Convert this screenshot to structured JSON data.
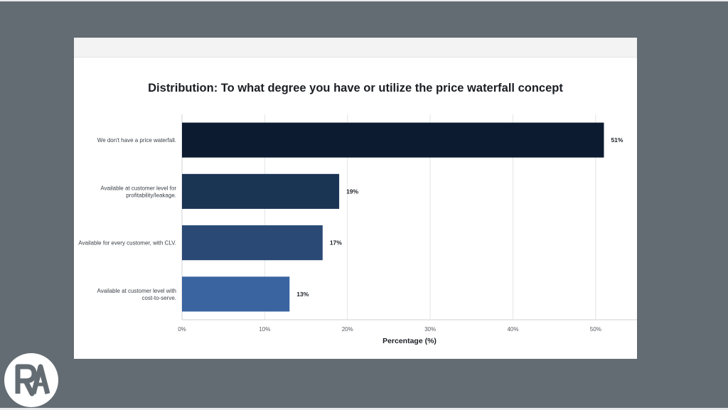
{
  "chart_data": {
    "type": "bar",
    "orientation": "horizontal",
    "title": "Distribution: To what degree you have or utilize the price waterfall concept",
    "categories": [
      "We don't have a price waterfall.",
      "Available at customer level for profitability/leakage.",
      "Available for every customer, with CLV.",
      "Available at customer level with cost-to-serve."
    ],
    "category_lines": [
      [
        "We don't have a price waterfall."
      ],
      [
        "Available at customer level for",
        "profitability/leakage."
      ],
      [
        "Available for every customer, with CLV."
      ],
      [
        "Available at customer level with",
        "cost-to-serve."
      ]
    ],
    "values": [
      51,
      19,
      17,
      13
    ],
    "value_labels": [
      "51%",
      "19%",
      "17%",
      "13%"
    ],
    "bar_colors": [
      "#0c1b30",
      "#1a3454",
      "#2a4a75",
      "#3a64a0"
    ],
    "xlabel": "Percentage (%)",
    "ylabel": "",
    "xlim": [
      0,
      55
    ],
    "xticks": [
      0,
      10,
      20,
      30,
      40,
      50
    ],
    "xtick_labels": [
      "0%",
      "10%",
      "20%",
      "30%",
      "40%",
      "50%"
    ],
    "grid": "vertical"
  },
  "logo": {
    "text": "RA"
  }
}
